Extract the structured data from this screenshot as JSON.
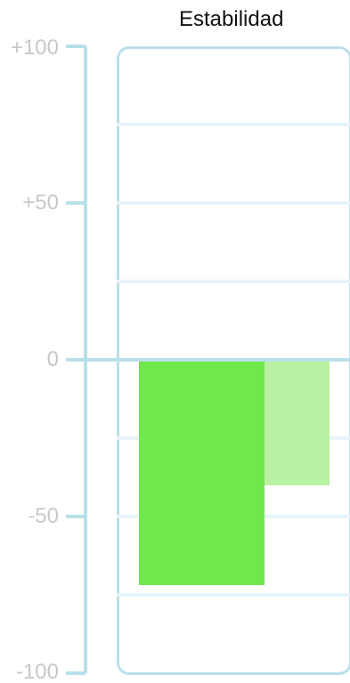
{
  "chart_data": {
    "type": "bar",
    "title": "Estabilidad",
    "xlabel": "",
    "ylabel": "",
    "ylim": [
      -100,
      100
    ],
    "yticks": [
      100,
      50,
      0,
      -50,
      -100
    ],
    "ytick_labels": [
      "+100",
      "+50",
      "0",
      "-50",
      "-100"
    ],
    "gridlines": [
      75,
      50,
      25,
      -25,
      -50,
      -75
    ],
    "grid": true,
    "legend": "none",
    "categories": [
      "",
      ""
    ],
    "values": [
      -72,
      -40
    ],
    "colors": [
      "#70e84a",
      "#b9f2a3"
    ]
  },
  "colors": {
    "axis": "#b9e0ea",
    "grid": "#e6f4fa",
    "tick_text": "#c8c8c8",
    "title_text": "#111111"
  }
}
